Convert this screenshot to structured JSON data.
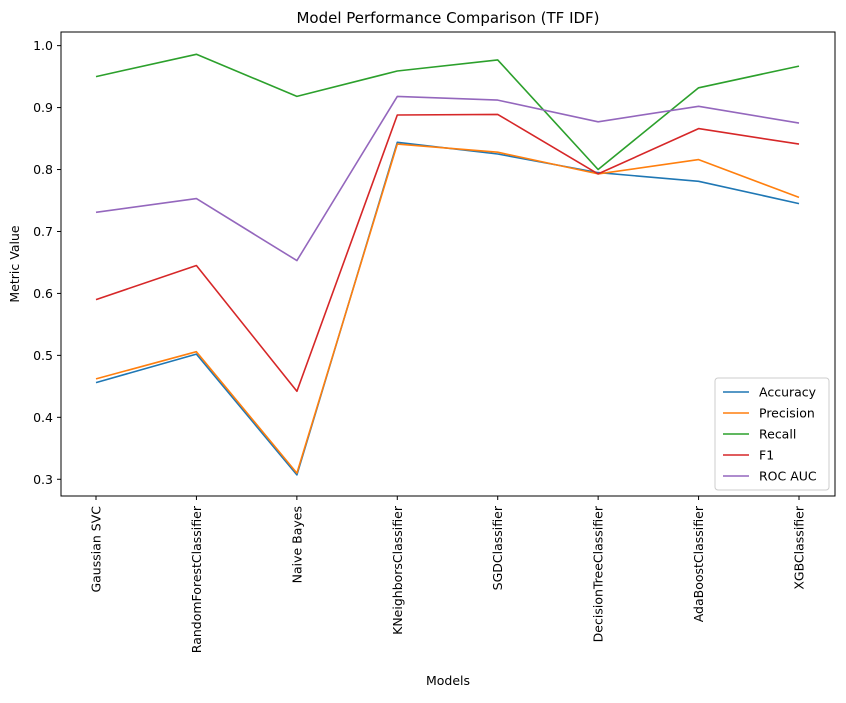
{
  "chart_data": {
    "type": "line",
    "title": "Model Performance Comparison (TF IDF)",
    "xlabel": "Models",
    "ylabel": "Metric Value",
    "categories": [
      "Gaussian SVC",
      "RandomForestClassifier",
      "Naive Bayes",
      "KNeighborsClassifier",
      "SGDClassifier",
      "DecisionTreeClassifier",
      "AdaBoostClassifier",
      "XGBClassifier"
    ],
    "y_ticks": [
      0.3,
      0.4,
      0.5,
      0.6,
      0.7,
      0.8,
      0.9,
      1.0
    ],
    "y_tick_labels": [
      "0.3",
      "0.4",
      "0.5",
      "0.6",
      "0.7",
      "0.8",
      "0.9",
      "1.0"
    ],
    "ylim": [
      0.273,
      1.022
    ],
    "grid": false,
    "legend_position": "lower-right",
    "series": [
      {
        "name": "Accuracy",
        "color": "#1f77b4",
        "values": [
          0.456,
          0.502,
          0.307,
          0.844,
          0.825,
          0.795,
          0.781,
          0.745
        ]
      },
      {
        "name": "Precision",
        "color": "#ff7f0e",
        "values": [
          0.462,
          0.506,
          0.31,
          0.841,
          0.828,
          0.793,
          0.816,
          0.755
        ]
      },
      {
        "name": "Recall",
        "color": "#2ca02c",
        "values": [
          0.95,
          0.986,
          0.918,
          0.959,
          0.977,
          0.8,
          0.932,
          0.967
        ]
      },
      {
        "name": "F1",
        "color": "#d62728",
        "values": [
          0.59,
          0.645,
          0.442,
          0.888,
          0.889,
          0.793,
          0.866,
          0.841
        ]
      },
      {
        "name": "ROC AUC",
        "color": "#9467bd",
        "values": [
          0.731,
          0.753,
          0.653,
          0.918,
          0.912,
          0.877,
          0.902,
          0.875
        ]
      }
    ]
  }
}
